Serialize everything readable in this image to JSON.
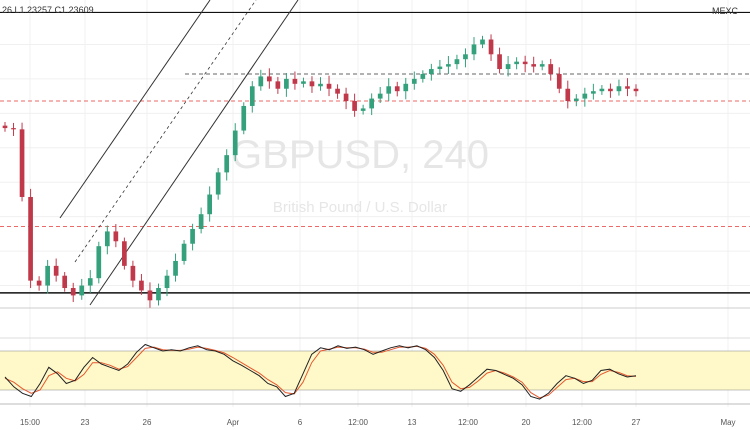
{
  "header": {
    "ohlc_fragment": "26  L1.23257  C1.23609",
    "badge": "MEXC"
  },
  "watermark": {
    "symbol": "GBPUSD, 240",
    "subtitle": "British Pound / U.S. Dollar"
  },
  "chart_data": [
    {
      "type": "candlestick",
      "x_tick_labels": [
        "15:00",
        "23",
        "26",
        "Apr",
        "6",
        "12:00",
        "13",
        "12:00",
        "20",
        "12:00",
        "27",
        "May"
      ],
      "price_close_series": [
        1.226,
        1.2255,
        1.198,
        1.164,
        1.162,
        1.17,
        1.166,
        1.161,
        1.158,
        1.162,
        1.165,
        1.178,
        1.184,
        1.18,
        1.17,
        1.164,
        1.16,
        1.156,
        1.161,
        1.166,
        1.172,
        1.179,
        1.185,
        1.191,
        1.199,
        1.208,
        1.215,
        1.225,
        1.235,
        1.243,
        1.247,
        1.245,
        1.242,
        1.246,
        1.244,
        1.245,
        1.243,
        1.244,
        1.242,
        1.24,
        1.237,
        1.233,
        1.234,
        1.238,
        1.24,
        1.243,
        1.241,
        1.244,
        1.246,
        1.248,
        1.25,
        1.251,
        1.252,
        1.254,
        1.256,
        1.26,
        1.262,
        1.256,
        1.25,
        1.252,
        1.253,
        1.252,
        1.251,
        1.252,
        1.248,
        1.242,
        1.237,
        1.238,
        1.24,
        1.241,
        1.242,
        1.241,
        1.243,
        1.242,
        1.241
      ],
      "horizontal_levels": [
        1.273,
        1.248,
        1.237,
        1.186,
        1.159
      ],
      "ylim": [
        1.148,
        1.274
      ]
    },
    {
      "type": "line",
      "name": "stochastic",
      "band": [
        20,
        80
      ],
      "ylim": [
        0,
        100
      ],
      "k_values": [
        40,
        25,
        15,
        10,
        30,
        55,
        45,
        30,
        35,
        55,
        70,
        60,
        55,
        50,
        60,
        78,
        90,
        85,
        80,
        82,
        80,
        85,
        88,
        82,
        80,
        75,
        65,
        58,
        50,
        42,
        30,
        25,
        10,
        15,
        45,
        75,
        85,
        82,
        88,
        84,
        86,
        82,
        75,
        80,
        85,
        88,
        85,
        88,
        82,
        70,
        50,
        22,
        18,
        28,
        40,
        52,
        50,
        44,
        38,
        28,
        10,
        6,
        15,
        30,
        42,
        38,
        30,
        35,
        50,
        52,
        45,
        40,
        42
      ],
      "d_values": [
        38,
        32,
        22,
        15,
        20,
        42,
        48,
        38,
        34,
        44,
        62,
        62,
        58,
        52,
        56,
        70,
        84,
        86,
        82,
        81,
        81,
        83,
        86,
        84,
        81,
        77,
        70,
        62,
        54,
        46,
        36,
        28,
        16,
        14,
        32,
        62,
        80,
        83,
        86,
        85,
        85,
        83,
        78,
        78,
        82,
        86,
        86,
        87,
        84,
        75,
        58,
        32,
        22,
        24,
        34,
        46,
        50,
        46,
        40,
        32,
        16,
        8,
        12,
        24,
        36,
        38,
        33,
        33,
        44,
        50,
        47,
        42,
        41
      ],
      "colors": {
        "k": "#222222",
        "d": "#e5592e",
        "band_fill": "#fff9c9",
        "band_line": "#888888"
      }
    }
  ],
  "colors": {
    "up_candle": "#34a07c",
    "down_candle": "#c0394b",
    "level_solid": "#111111",
    "level_dashed_red": "#e53935",
    "level_dashed_black": "#333333",
    "channel": "#333333",
    "grid": "#f0f0f0"
  }
}
